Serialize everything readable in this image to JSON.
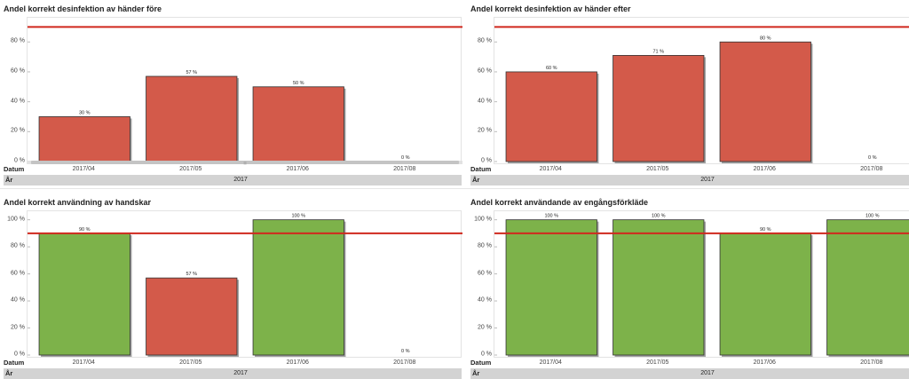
{
  "labels": {
    "datum": "Datum",
    "year": "År"
  },
  "chart_data": [
    {
      "type": "bar",
      "title": "Andel korrekt desinfektion av händer före",
      "categories": [
        "2017/04",
        "2017/05",
        "2017/06",
        "2017/08"
      ],
      "values": [
        30,
        57,
        50,
        0
      ],
      "value_labels": [
        "30 %",
        "57 %",
        "50 %",
        "0 %"
      ],
      "bar_colors": [
        "#d35a4a",
        "#d35a4a",
        "#d35a4a",
        "#d35a4a"
      ],
      "target_line": 90,
      "ylim": [
        0,
        95
      ],
      "yticks": [
        0,
        20,
        40,
        60,
        80
      ],
      "ytick_labels": [
        "0 %",
        "20 %",
        "40 %",
        "60 %",
        "80 %"
      ],
      "year": "2017",
      "scrollbar": true
    },
    {
      "type": "bar",
      "title": "Andel korrekt desinfektion av händer efter",
      "categories": [
        "2017/04",
        "2017/05",
        "2017/06",
        "2017/08"
      ],
      "values": [
        60,
        71,
        80,
        0
      ],
      "value_labels": [
        "60 %",
        "71 %",
        "80 %",
        "0 %"
      ],
      "bar_colors": [
        "#d35a4a",
        "#d35a4a",
        "#d35a4a",
        "#d35a4a"
      ],
      "target_line": 90,
      "ylim": [
        0,
        95
      ],
      "yticks": [
        0,
        20,
        40,
        60,
        80
      ],
      "ytick_labels": [
        "0 %",
        "20 %",
        "40 %",
        "60 %",
        "80 %"
      ],
      "year": "2017",
      "scrollbar": false
    },
    {
      "type": "bar",
      "title": "Andel korrekt användning av handskar",
      "categories": [
        "2017/04",
        "2017/05",
        "2017/06",
        "2017/08"
      ],
      "values": [
        90,
        57,
        100,
        0
      ],
      "value_labels": [
        "90 %",
        "57 %",
        "100 %",
        "0 %"
      ],
      "bar_colors": [
        "#7db24a",
        "#d35a4a",
        "#7db24a",
        "#7db24a"
      ],
      "target_line": 90,
      "ylim": [
        0,
        105
      ],
      "yticks": [
        0,
        20,
        40,
        60,
        80,
        100
      ],
      "ytick_labels": [
        "0 %",
        "20 %",
        "40 %",
        "60 %",
        "80 %",
        "100 %"
      ],
      "year": "2017",
      "scrollbar": false
    },
    {
      "type": "bar",
      "title": "Andel korrekt användande av engångsförkläde",
      "categories": [
        "2017/04",
        "2017/05",
        "2017/06",
        "2017/08"
      ],
      "values": [
        100,
        100,
        90,
        100
      ],
      "value_labels": [
        "100 %",
        "100 %",
        "90 %",
        "100 %"
      ],
      "bar_colors": [
        "#7db24a",
        "#7db24a",
        "#7db24a",
        "#7db24a"
      ],
      "target_line": 90,
      "ylim": [
        0,
        105
      ],
      "yticks": [
        0,
        20,
        40,
        60,
        80,
        100
      ],
      "ytick_labels": [
        "0 %",
        "20 %",
        "40 %",
        "60 %",
        "80 %",
        "100 %"
      ],
      "year": "2017",
      "scrollbar": false
    }
  ],
  "colors": {
    "target_line": "#d0281e",
    "red_bar": "#d35a4a",
    "green_bar": "#7db24a",
    "year_band": "#d3d3d3"
  }
}
